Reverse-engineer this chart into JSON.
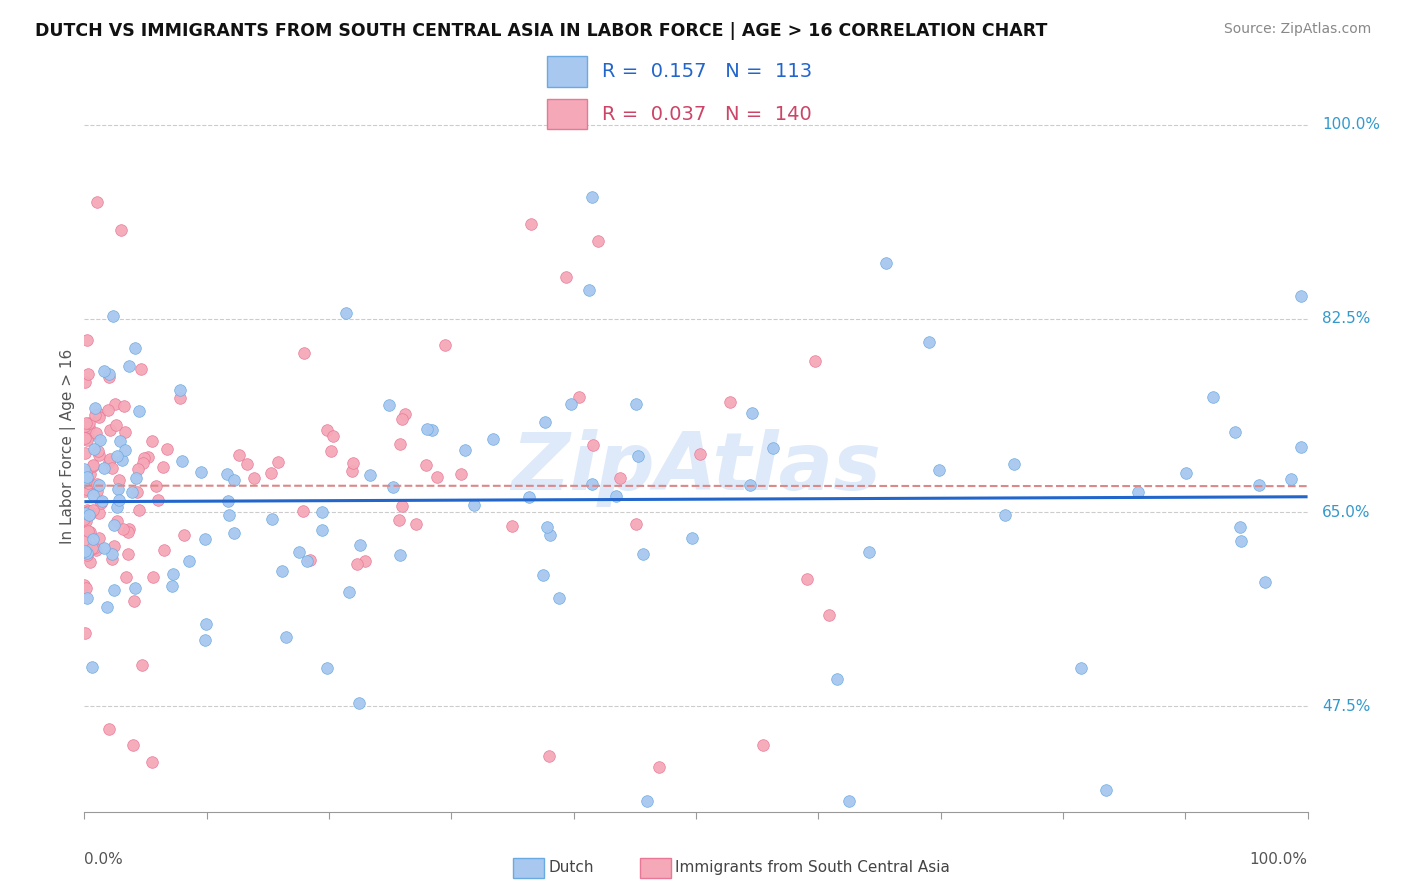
{
  "title": "DUTCH VS IMMIGRANTS FROM SOUTH CENTRAL ASIA IN LABOR FORCE | AGE > 16 CORRELATION CHART",
  "source": "Source: ZipAtlas.com",
  "ylabel": "In Labor Force | Age > 16",
  "legend_label1": "Dutch",
  "legend_label2": "Immigrants from South Central Asia",
  "R1": 0.157,
  "N1": 113,
  "R2": 0.037,
  "N2": 140,
  "color_dutch": "#a8c8f0",
  "color_immig": "#f5a8b8",
  "edgecolor_dutch": "#6aaae0",
  "edgecolor_immig": "#e87898",
  "line_color_dutch": "#2266cc",
  "line_color_immig": "#dd8888",
  "background_color": "#ffffff",
  "xlim": [
    0.0,
    1.0
  ],
  "ylim": [
    0.38,
    1.04
  ],
  "ytick_vals": [
    0.475,
    0.65,
    0.825,
    1.0
  ],
  "ytick_labels": [
    "47.5%",
    "65.0%",
    "82.5%",
    "100.0%"
  ],
  "watermark_color": "#c8ddf5",
  "watermark_alpha": 0.6,
  "legend_R1_color": "#2266cc",
  "legend_R2_color": "#cc4466",
  "legend_N1_color": "#2266cc",
  "legend_N2_color": "#cc4466"
}
